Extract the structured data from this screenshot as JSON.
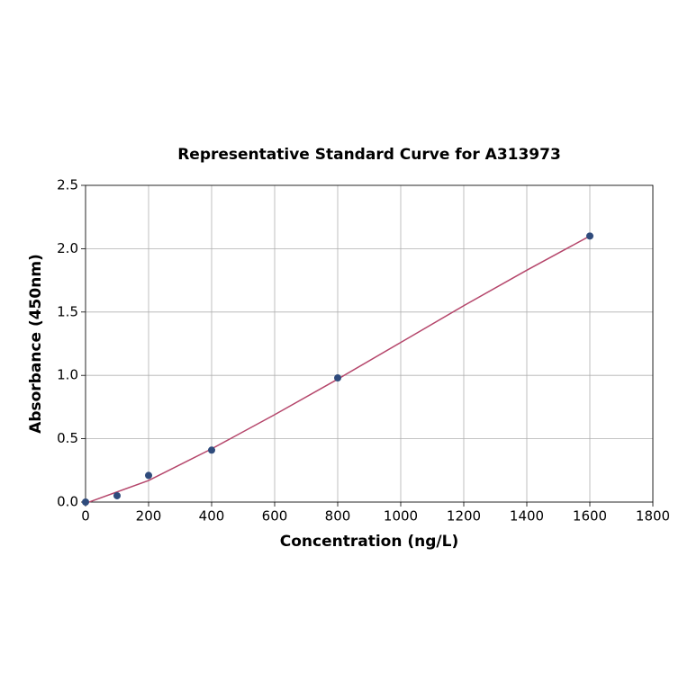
{
  "chart_data": {
    "type": "scatter",
    "title": "Representative Standard Curve for A313973",
    "xlabel": "Concentration (ng/L)",
    "ylabel": "Absorbance (450nm)",
    "xlim": [
      0,
      1800
    ],
    "ylim": [
      0,
      2.5
    ],
    "xticks": [
      0,
      200,
      400,
      600,
      800,
      1000,
      1200,
      1400,
      1600,
      1800
    ],
    "yticks": [
      {
        "value": 0,
        "label": "0.0"
      },
      0.5,
      {
        "value": 1,
        "label": "1.0"
      },
      1.5,
      {
        "value": 2,
        "label": "2.0"
      },
      2.5
    ],
    "grid": true,
    "series": [
      {
        "type": "scatter",
        "color": "#2f4b7c",
        "x": [
          0,
          100,
          200,
          400,
          800,
          1600
        ],
        "values": [
          0,
          0.05,
          0.21,
          0.41,
          0.98,
          2.1
        ]
      },
      {
        "type": "line",
        "color": "#b5466b",
        "x": [
          0,
          200,
          400,
          600,
          800,
          1000,
          1200,
          1400,
          1600
        ],
        "values": [
          -0.01,
          0.17,
          0.42,
          0.69,
          0.97,
          1.26,
          1.55,
          1.83,
          2.1
        ]
      }
    ]
  }
}
